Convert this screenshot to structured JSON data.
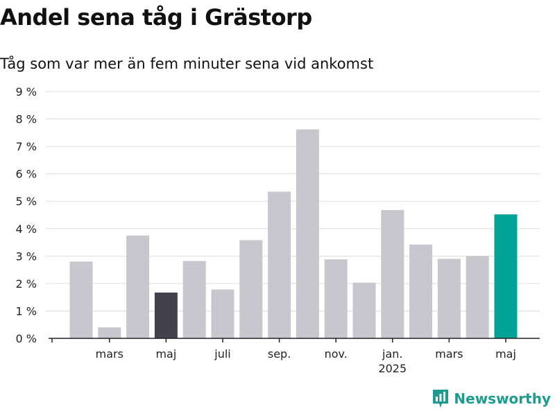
{
  "title": "Andel sena tåg i Grästorp",
  "subtitle": "Tåg som var mer än fem minuter sena vid ankomst",
  "brand": "Newsworthy",
  "colors": {
    "default_bar": "#c8c7cd",
    "highlight_dark": "#42414d",
    "highlight_teal": "#00a396",
    "grid": "#dddddd",
    "axis": "#222222",
    "brand": "#1f9a90"
  },
  "chart_data": {
    "type": "bar",
    "ylim": [
      0,
      9
    ],
    "yticks": [
      0,
      1,
      2,
      3,
      4,
      5,
      6,
      7,
      8,
      9
    ],
    "ytick_labels": [
      "0 %",
      "1 %",
      "2 %",
      "3 %",
      "4 %",
      "5 %",
      "6 %",
      "7 %",
      "8 %",
      "9 %"
    ],
    "grid": true,
    "categories": [
      "2024-02",
      "2024-03",
      "2024-04",
      "2024-05",
      "2024-06",
      "2024-07",
      "2024-08",
      "2024-09",
      "2024-10",
      "2024-11",
      "2024-12",
      "2025-01",
      "2025-02",
      "2025-03",
      "2025-04",
      "2025-05"
    ],
    "values": [
      2.8,
      0.4,
      3.75,
      1.67,
      2.82,
      1.78,
      3.58,
      5.35,
      7.62,
      2.88,
      2.03,
      4.68,
      3.42,
      2.9,
      3.0,
      4.52
    ],
    "highlight": {
      "2024-05": "dark",
      "2025-05": "teal"
    },
    "x_tick_labels": [
      {
        "month": "2024-03",
        "label": "mars"
      },
      {
        "month": "2024-05",
        "label": "maj"
      },
      {
        "month": "2024-07",
        "label": "juli"
      },
      {
        "month": "2024-09",
        "label": "sep."
      },
      {
        "month": "2024-11",
        "label": "nov."
      },
      {
        "month": "2025-01",
        "label": "jan.",
        "sublabel": "2025"
      },
      {
        "month": "2025-03",
        "label": "mars"
      },
      {
        "month": "2025-05",
        "label": "maj"
      }
    ]
  }
}
